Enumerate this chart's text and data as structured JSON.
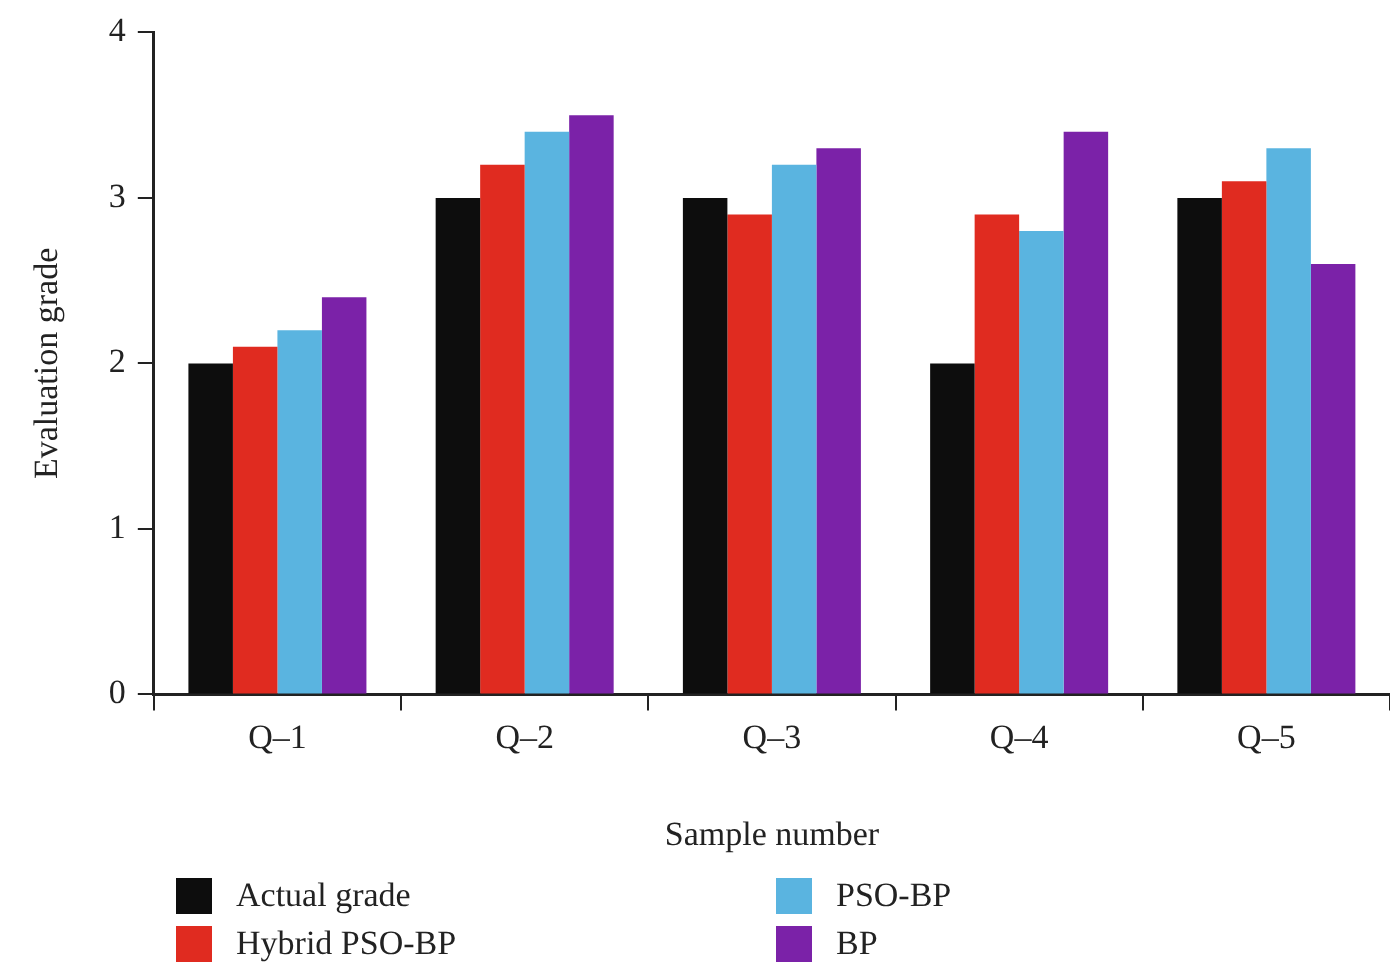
{
  "chart_data": {
    "type": "bar",
    "xlabel": "Sample number",
    "ylabel": "Evaluation grade",
    "categories": [
      "Q–1",
      "Q–2",
      "Q–3",
      "Q–4",
      "Q–5"
    ],
    "series": [
      {
        "name": "Actual grade",
        "color": "#0d0d0d",
        "values": [
          2.0,
          3.0,
          3.0,
          2.0,
          3.0
        ]
      },
      {
        "name": "Hybrid PSO-BP",
        "color": "#e02b20",
        "values": [
          2.1,
          3.2,
          2.9,
          2.9,
          3.1
        ]
      },
      {
        "name": "PSO-BP",
        "color": "#5ab4e0",
        "values": [
          2.2,
          3.4,
          3.2,
          2.8,
          3.3
        ]
      },
      {
        "name": "BP",
        "color": "#7b22a8",
        "values": [
          2.4,
          3.5,
          3.3,
          3.4,
          2.6
        ]
      }
    ],
    "ylim": [
      0,
      4
    ],
    "yticks": [
      0,
      1,
      2,
      3,
      4
    ],
    "grid": false,
    "legend": "bottom"
  }
}
